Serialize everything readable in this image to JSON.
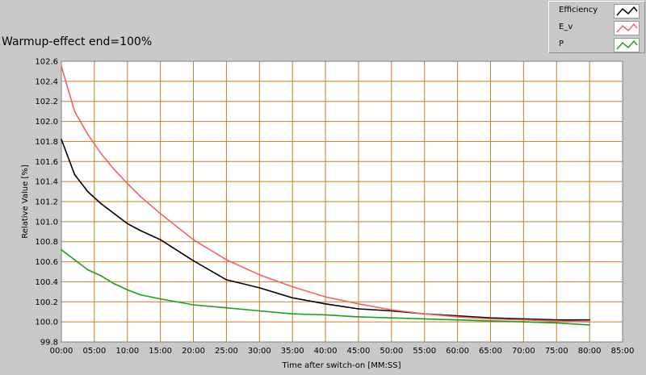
{
  "chart_data": {
    "type": "line",
    "title": "Warmup-effect end=100%",
    "xlabel": "Time after switch-on [MM:SS]",
    "ylabel": "Relative Value [%]",
    "xlim": [
      0,
      85
    ],
    "ylim": [
      99.8,
      102.6
    ],
    "x_ticks": [
      "00:00",
      "05:00",
      "10:00",
      "15:00",
      "20:00",
      "25:00",
      "30:00",
      "35:00",
      "40:00",
      "45:00",
      "50:00",
      "55:00",
      "60:00",
      "65:00",
      "70:00",
      "75:00",
      "80:00",
      "85:00"
    ],
    "y_ticks": [
      "99.8",
      "100.0",
      "100.2",
      "100.4",
      "100.6",
      "100.8",
      "101.0",
      "101.2",
      "101.4",
      "101.6",
      "101.8",
      "102.0",
      "102.2",
      "102.4",
      "102.6"
    ],
    "grid": true,
    "legend_position": "top-right",
    "x": [
      0,
      2,
      4,
      6,
      8,
      10,
      12,
      15,
      20,
      25,
      30,
      35,
      40,
      45,
      50,
      55,
      60,
      65,
      70,
      75,
      80
    ],
    "series": [
      {
        "name": "Efficiency",
        "color": "#000000",
        "values": [
          101.82,
          101.47,
          101.3,
          101.18,
          101.08,
          100.98,
          100.91,
          100.82,
          100.61,
          100.42,
          100.34,
          100.24,
          100.18,
          100.13,
          100.11,
          100.08,
          100.06,
          100.04,
          100.03,
          100.02,
          100.02
        ]
      },
      {
        "name": "E_v",
        "color": "#f06464",
        "values": [
          102.55,
          102.1,
          101.87,
          101.68,
          101.52,
          101.38,
          101.25,
          101.08,
          100.82,
          100.62,
          100.47,
          100.35,
          100.25,
          100.18,
          100.12,
          100.08,
          100.05,
          100.03,
          100.02,
          100.01,
          100.0
        ]
      },
      {
        "name": "P",
        "color": "#1aa01a",
        "values": [
          100.72,
          100.62,
          100.52,
          100.46,
          100.38,
          100.32,
          100.27,
          100.23,
          100.17,
          100.14,
          100.11,
          100.08,
          100.07,
          100.05,
          100.04,
          100.03,
          100.02,
          100.01,
          100.0,
          99.99,
          99.97
        ]
      }
    ]
  }
}
